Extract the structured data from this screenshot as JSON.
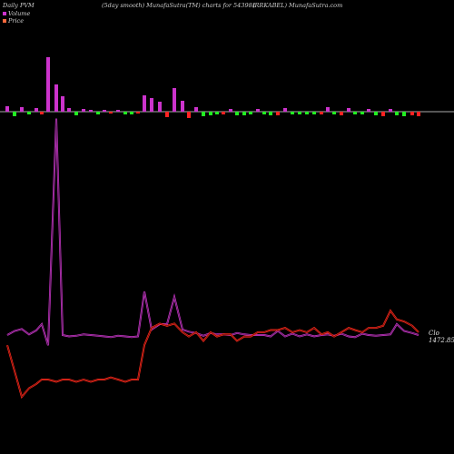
{
  "header": {
    "left": "Daily PVM",
    "center": "(5day smooth) MunafaSutra(TM) charts for 543981",
    "right": "(RRKABEL) MunafaSutra.com"
  },
  "legend": [
    {
      "name": "Volume",
      "color": "#cc33cc"
    },
    {
      "name": "Price",
      "color": "#ff6a3d"
    }
  ],
  "colors": {
    "background": "#000000",
    "volume_line": "#cc33cc",
    "price_line": "#ff2a1a",
    "bar_up": "#cc33cc",
    "bar_down_red": "#ff2222",
    "bar_down_green": "#22ee22",
    "baseline": "#aaaaaa"
  },
  "chart_data": {
    "type": "line",
    "title": "(5day smooth) MunafaSutra(TM) charts for 543981",
    "ticker": "543981",
    "name": "RRKABEL",
    "last_price_label": "1472.85",
    "close_label": "Clo",
    "bars": {
      "x": [
        8,
        16,
        24,
        32,
        40,
        46,
        53,
        62,
        69,
        76,
        84,
        92,
        100,
        108,
        115,
        122,
        130,
        138,
        145,
        152,
        159,
        167,
        176,
        184,
        192,
        201,
        208,
        216,
        224,
        232,
        239,
        246,
        254,
        261,
        269,
        276,
        284,
        291,
        298,
        306,
        314,
        322,
        330,
        338,
        346,
        354,
        361,
        368,
        376,
        384,
        391,
        399,
        406,
        414,
        422,
        430,
        437,
        445,
        454,
        461
      ],
      "values": [
        6,
        -5,
        5,
        -3,
        4,
        -3,
        60,
        30,
        17,
        4,
        -4,
        3,
        2,
        -3,
        2,
        -2,
        2,
        -3,
        -3,
        -2,
        18,
        15,
        11,
        -6,
        26,
        12,
        -7,
        5,
        -5,
        -4,
        -3,
        -3,
        3,
        -4,
        -4,
        -3,
        3,
        -3,
        -4,
        -4,
        4,
        -3,
        -3,
        -3,
        -3,
        -3,
        5,
        -3,
        -4,
        4,
        -3,
        -3,
        3,
        -4,
        -5,
        3,
        -4,
        -5,
        -4,
        -5
      ],
      "colors": [
        "#cc33cc",
        "#22ee22",
        "#cc33cc",
        "#22ee22",
        "#cc33cc",
        "#ff2222",
        "#cc33cc",
        "#cc33cc",
        "#cc33cc",
        "#cc33cc",
        "#22ee22",
        "#cc33cc",
        "#cc33cc",
        "#22ee22",
        "#cc33cc",
        "#ff2222",
        "#cc33cc",
        "#22ee22",
        "#22ee22",
        "#ff2222",
        "#cc33cc",
        "#cc33cc",
        "#cc33cc",
        "#ff2222",
        "#cc33cc",
        "#cc33cc",
        "#ff2222",
        "#cc33cc",
        "#22ee22",
        "#22ee22",
        "#22ee22",
        "#ff2222",
        "#cc33cc",
        "#22ee22",
        "#22ee22",
        "#22ee22",
        "#cc33cc",
        "#22ee22",
        "#22ee22",
        "#ff2222",
        "#cc33cc",
        "#22ee22",
        "#22ee22",
        "#22ee22",
        "#22ee22",
        "#ff2222",
        "#cc33cc",
        "#22ee22",
        "#ff2222",
        "#cc33cc",
        "#22ee22",
        "#22ee22",
        "#cc33cc",
        "#22ee22",
        "#ff2222",
        "#cc33cc",
        "#22ee22",
        "#22ee22",
        "#ff2222",
        "#ff2222"
      ]
    },
    "series": [
      {
        "name": "Volume",
        "x": [
          8,
          16,
          24,
          32,
          40,
          46,
          53,
          62,
          69,
          76,
          84,
          92,
          100,
          108,
          115,
          122,
          130,
          138,
          145,
          152,
          159,
          167,
          176,
          184,
          192,
          201,
          208,
          216,
          224,
          232,
          239,
          246,
          254,
          261,
          269,
          276,
          284,
          291,
          298,
          306,
          314,
          322,
          330,
          338,
          346,
          354,
          361,
          368,
          376,
          384,
          391,
          399,
          406,
          414,
          422,
          430,
          437,
          445,
          454,
          461
        ],
        "y": [
          52,
          58,
          61,
          53,
          59,
          68,
          37,
          370,
          52,
          50,
          51,
          53,
          52,
          51,
          50,
          49,
          51,
          50,
          49,
          50,
          116,
          60,
          68,
          68,
          108,
          60,
          57,
          55,
          51,
          55,
          53,
          53,
          52,
          55,
          53,
          52,
          52,
          52,
          50,
          58,
          50,
          54,
          50,
          53,
          50,
          52,
          53,
          51,
          54,
          50,
          49,
          54,
          52,
          51,
          52,
          53,
          68,
          58,
          55,
          52
        ]
      },
      {
        "name": "Price",
        "x": [
          8,
          16,
          24,
          32,
          40,
          46,
          53,
          62,
          69,
          76,
          84,
          92,
          100,
          108,
          115,
          122,
          130,
          138,
          145,
          152,
          159,
          167,
          176,
          184,
          192,
          201,
          208,
          216,
          224,
          232,
          239,
          246,
          254,
          261,
          269,
          276,
          284,
          291,
          298,
          306,
          314,
          322,
          330,
          338,
          346,
          354,
          361,
          368,
          376,
          384,
          391,
          399,
          406,
          414,
          422,
          430,
          437,
          445,
          454,
          461
        ],
        "y": [
          850,
          790,
          730,
          750,
          760,
          770,
          770,
          765,
          770,
          770,
          765,
          770,
          765,
          770,
          770,
          775,
          770,
          765,
          770,
          770,
          850,
          890,
          900,
          895,
          900,
          880,
          870,
          880,
          860,
          880,
          870,
          875,
          875,
          860,
          870,
          870,
          880,
          880,
          885,
          885,
          890,
          880,
          885,
          880,
          890,
          875,
          880,
          870,
          880,
          890,
          885,
          880,
          890,
          890,
          895,
          930,
          910,
          905,
          895,
          880
        ]
      }
    ]
  }
}
